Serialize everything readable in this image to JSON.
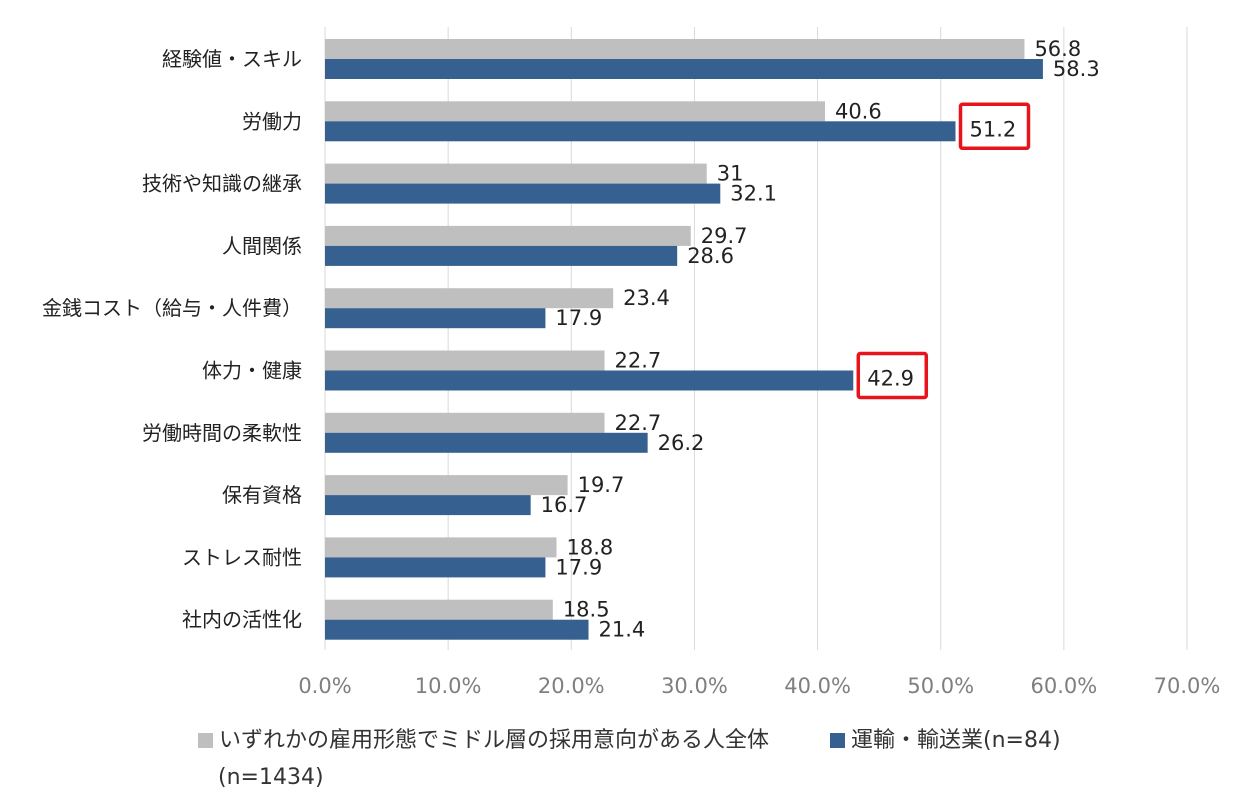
{
  "chart_data": {
    "type": "bar",
    "orientation": "horizontal",
    "categories": [
      "経験値・スキル",
      "労働力",
      "技術や知識の継承",
      "人間関係",
      "金銭コスト（給与・人件費）",
      "体力・健康",
      "労働時間の柔軟性",
      "保有資格",
      "ストレス耐性",
      "社内の活性化"
    ],
    "series": [
      {
        "name": "いずれかの雇用形態でミドル層の採用意向がある人全体",
        "name_note": "(n=1434)",
        "color": "#bfbfbf",
        "values": [
          56.8,
          40.6,
          31,
          29.7,
          23.4,
          22.7,
          22.7,
          19.7,
          18.8,
          18.5
        ],
        "labels": [
          "56.8",
          "40.6",
          "31",
          "29.7",
          "23.4",
          "22.7",
          "22.7",
          "19.7",
          "18.8",
          "18.5"
        ]
      },
      {
        "name": "運輸・輸送業(n=84)",
        "color": "#35608f",
        "values": [
          58.3,
          51.2,
          32.1,
          28.6,
          17.9,
          42.9,
          26.2,
          16.7,
          17.9,
          21.4
        ],
        "labels": [
          "58.3",
          "51.2",
          "32.1",
          "28.6",
          "17.9",
          "42.9",
          "26.2",
          "16.7",
          "17.9",
          "21.4"
        ]
      }
    ],
    "xlim": [
      0,
      70
    ],
    "xticks": [
      "0.0%",
      "10.0%",
      "20.0%",
      "30.0%",
      "40.0%",
      "50.0%",
      "60.0%",
      "70.0%"
    ],
    "grid": true,
    "legend_position": "bottom",
    "highlight_color": "#e8141b",
    "highlighted": [
      {
        "category_index": 1,
        "series_index": 1
      },
      {
        "category_index": 5,
        "series_index": 1
      }
    ]
  }
}
